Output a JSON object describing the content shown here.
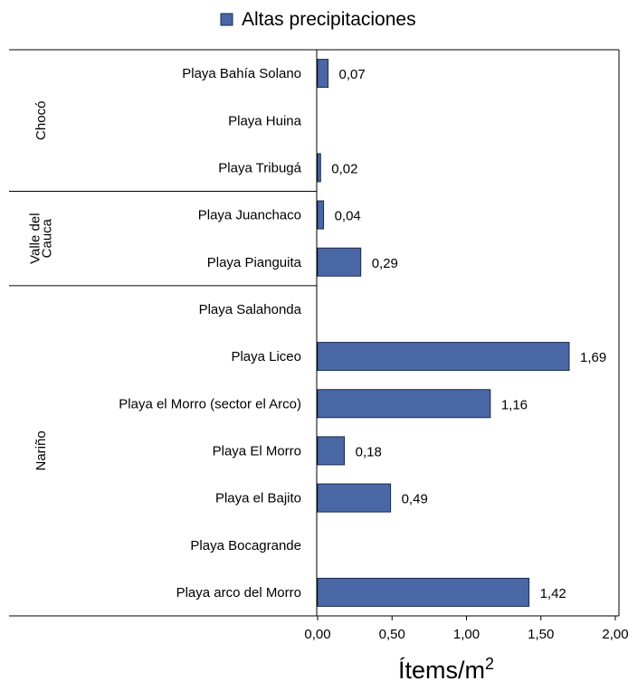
{
  "chart_data": {
    "type": "bar",
    "orientation": "horizontal",
    "legend": {
      "label": "Altas precipitaciones",
      "position": "top-center"
    },
    "series": [
      {
        "name": "Altas precipitaciones",
        "color": "#4a68a6"
      }
    ],
    "groups": [
      {
        "name": "Chocó",
        "start": 0,
        "end": 2
      },
      {
        "name": "Valle del Cauca",
        "lines": [
          "Valle del",
          "Cauca"
        ],
        "start": 3,
        "end": 4
      },
      {
        "name": "Nariño",
        "start": 5,
        "end": 11
      }
    ],
    "categories": [
      "Playa Bahía Solano",
      "Playa Huina",
      "Playa Tribugá",
      "Playa Juanchaco",
      "Playa Pianguita",
      "Playa Salahonda",
      "Playa Liceo",
      "Playa el Morro (sector el Arco)",
      "Playa El Morro",
      "Playa el Bajito",
      "Playa Bocagrande",
      "Playa arco del Morro"
    ],
    "values": [
      0.07,
      null,
      0.02,
      0.04,
      0.29,
      null,
      1.69,
      1.16,
      0.18,
      0.49,
      null,
      1.42
    ],
    "data_labels": [
      "0,07",
      "",
      "0,02",
      "0,04",
      "0,29",
      "",
      "1,69",
      "1,16",
      "0,18",
      "0,49",
      "",
      "1,42"
    ],
    "xlim": [
      0,
      2
    ],
    "x_ticks": [
      0,
      0.5,
      1,
      1.5,
      2
    ],
    "x_tick_labels": [
      "0,00",
      "0,50",
      "1,00",
      "1,50",
      "2,00"
    ],
    "xlabel": "Ítems/m",
    "xlabel_superscript": "2",
    "ylabel": "",
    "grid": false
  }
}
